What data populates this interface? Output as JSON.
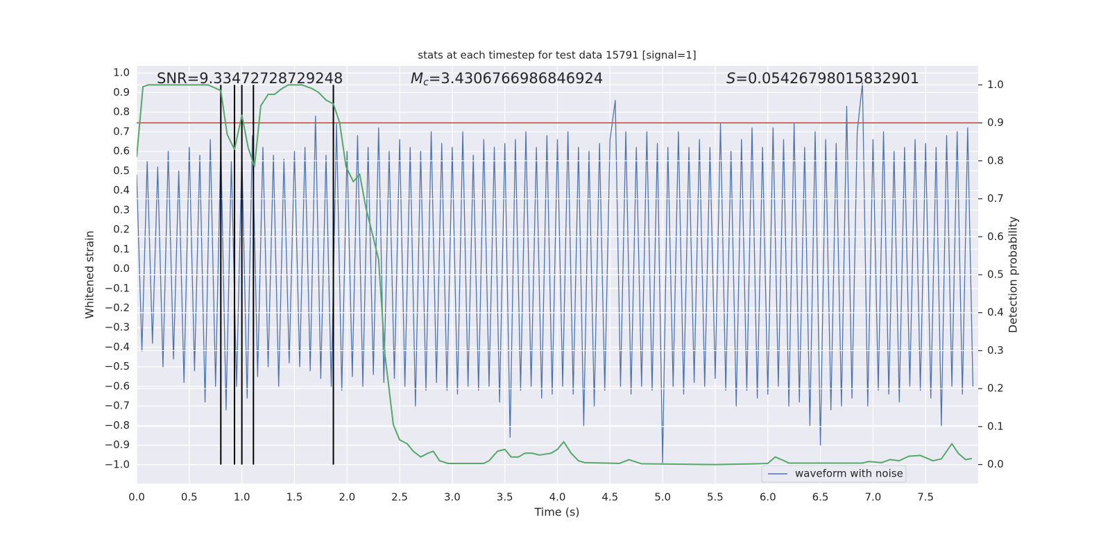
{
  "chart_data": {
    "type": "line",
    "title": "stats at each timestep for test data 15791 [signal=1]",
    "xlabel": "Time (s)",
    "ylabel": "Whitened strain",
    "y2label": "Detection probability",
    "background": "#eaeaf2",
    "grid": true,
    "legend": "lower right",
    "xlim": [
      0,
      8
    ],
    "ylim": [
      -1.096,
      1.036
    ],
    "y2lim": [
      -0.05,
      1.05
    ],
    "xticks": [
      {
        "value": 0,
        "label": "0.0"
      },
      0.5,
      {
        "value": 1,
        "label": "1.0"
      },
      1.5,
      {
        "value": 2,
        "label": "2.0"
      },
      2.5,
      {
        "value": 3,
        "label": "3.0"
      },
      3.5,
      {
        "value": 4,
        "label": "4.0"
      },
      4.5,
      {
        "value": 5,
        "label": "5.0"
      },
      5.5,
      {
        "value": 6,
        "label": "6.0"
      },
      6.5,
      {
        "value": 7,
        "label": "7.0"
      },
      7.5
    ],
    "yticks": [
      {
        "value": -1,
        "label": "−1.0"
      },
      {
        "value": -0.9,
        "label": "−0.9"
      },
      {
        "value": -0.8,
        "label": "−0.8"
      },
      {
        "value": -0.7,
        "label": "−0.7"
      },
      {
        "value": -0.6,
        "label": "−0.6"
      },
      {
        "value": -0.5,
        "label": "−0.5"
      },
      {
        "value": -0.4,
        "label": "−0.4"
      },
      {
        "value": -0.3,
        "label": "−0.3"
      },
      {
        "value": -0.2,
        "label": "−0.2"
      },
      {
        "value": -0.1,
        "label": "−0.1"
      },
      {
        "value": 0,
        "label": "0.0"
      },
      0.1,
      0.2,
      0.3,
      0.4,
      0.5,
      0.6,
      0.7,
      0.8,
      0.9,
      {
        "value": 1,
        "label": "1.0"
      }
    ],
    "y2ticks": [
      {
        "value": 0,
        "label": "0.0"
      },
      0.1,
      0.2,
      0.3,
      0.4,
      0.5,
      0.6,
      0.7,
      0.8,
      0.9,
      {
        "value": 1,
        "label": "1.0"
      }
    ],
    "annotations": [
      {
        "text": "SNR=9.33472728729248"
      },
      {
        "italic": "M",
        "sub": "c",
        "text": "=3.4306766986846924"
      },
      {
        "italic": "S",
        "text": "=0.05426798015832901"
      }
    ],
    "threshold": {
      "value": 0.9,
      "axis": "y2",
      "color": "#c44e52"
    },
    "vlines": [
      0.8,
      0.93,
      1.0,
      1.11,
      1.87
    ],
    "vline_color": "#000000",
    "series": [
      {
        "name": "waveform with noise",
        "color": "#4c72b0",
        "x": [
          0,
          0.05,
          0.1,
          0.15,
          0.2,
          0.25,
          0.3,
          0.35,
          0.4,
          0.45,
          0.5,
          0.55,
          0.6,
          0.65,
          0.7,
          0.75,
          0.8,
          0.85,
          0.9,
          0.95,
          1,
          1.05,
          1.1,
          1.15,
          1.2,
          1.25,
          1.3,
          1.35,
          1.4,
          1.45,
          1.5,
          1.55,
          1.6,
          1.65,
          1.7,
          1.75,
          1.8,
          1.85,
          1.9,
          1.95,
          2,
          2.05,
          2.1,
          2.15,
          2.2,
          2.25,
          2.3,
          2.35,
          2.4,
          2.45,
          2.5,
          2.55,
          2.6,
          2.65,
          2.7,
          2.75,
          2.8,
          2.85,
          2.9,
          2.95,
          3,
          3.05,
          3.1,
          3.15,
          3.2,
          3.25,
          3.3,
          3.35,
          3.4,
          3.45,
          3.5,
          3.55,
          3.6,
          3.65,
          3.7,
          3.75,
          3.8,
          3.85,
          3.9,
          3.95,
          4,
          4.05,
          4.1,
          4.15,
          4.2,
          4.25,
          4.3,
          4.35,
          4.4,
          4.45,
          4.5,
          4.55,
          4.6,
          4.65,
          4.7,
          4.75,
          4.8,
          4.85,
          4.9,
          4.95,
          5,
          5.05,
          5.1,
          5.15,
          5.2,
          5.25,
          5.3,
          5.35,
          5.4,
          5.45,
          5.5,
          5.55,
          5.6,
          5.65,
          5.7,
          5.75,
          5.8,
          5.85,
          5.9,
          5.95,
          6,
          6.05,
          6.1,
          6.15,
          6.2,
          6.25,
          6.3,
          6.35,
          6.4,
          6.45,
          6.5,
          6.55,
          6.6,
          6.65,
          6.7,
          6.75,
          6.8,
          6.85,
          6.9,
          6.95,
          7,
          7.05,
          7.1,
          7.15,
          7.2,
          7.25,
          7.3,
          7.35,
          7.4,
          7.45,
          7.5,
          7.55,
          7.6,
          7.65,
          7.7,
          7.75,
          7.8,
          7.85,
          7.9,
          7.95
        ],
        "values": [
          0.48,
          -0.42,
          0.55,
          -0.38,
          0.52,
          -0.5,
          0.6,
          -0.46,
          0.5,
          -0.58,
          0.62,
          -0.52,
          0.58,
          -0.68,
          0.66,
          -0.6,
          0.64,
          -0.72,
          0.55,
          -0.6,
          0.6,
          -0.66,
          0.68,
          -0.55,
          0.62,
          -0.5,
          0.58,
          -0.6,
          0.56,
          -0.48,
          0.6,
          -0.5,
          0.62,
          -0.52,
          0.78,
          -0.56,
          0.58,
          -0.6,
          0.74,
          -0.62,
          0.6,
          -0.55,
          0.68,
          -0.6,
          0.62,
          -0.54,
          0.72,
          -0.58,
          0.6,
          -0.56,
          0.66,
          -0.6,
          0.62,
          -0.7,
          0.6,
          -0.62,
          0.7,
          -0.58,
          0.64,
          -0.62,
          0.62,
          -0.64,
          0.7,
          -0.6,
          0.58,
          -0.62,
          0.66,
          -0.6,
          0.62,
          -0.68,
          0.64,
          -0.86,
          0.66,
          -0.62,
          0.7,
          -0.6,
          0.62,
          -0.66,
          0.68,
          -0.64,
          0.66,
          -0.6,
          0.7,
          -0.64,
          0.62,
          -0.8,
          0.6,
          -0.7,
          0.64,
          -0.62,
          0.66,
          0.86,
          -0.6,
          0.7,
          -0.64,
          0.62,
          -0.6,
          0.7,
          -0.62,
          0.64,
          -0.99,
          0.62,
          -0.6,
          0.7,
          -0.64,
          0.62,
          -0.58,
          0.66,
          -0.6,
          0.62,
          -0.56,
          0.74,
          -0.62,
          0.6,
          -0.7,
          0.66,
          -0.62,
          0.72,
          -0.66,
          0.62,
          -0.64,
          0.72,
          -0.6,
          0.66,
          -0.7,
          0.74,
          -0.68,
          0.62,
          -0.8,
          0.7,
          -0.9,
          0.66,
          -0.72,
          0.64,
          -0.7,
          0.83,
          -0.66,
          0.7,
          0.95,
          -0.7,
          0.66,
          -0.62,
          0.7,
          -0.64,
          0.6,
          -0.68,
          0.62,
          -0.6,
          0.66,
          -0.62,
          0.64,
          -0.66,
          0.62,
          -0.8,
          0.68,
          -0.6,
          0.7,
          -0.64,
          0.72,
          -0.6
        ]
      },
      {
        "color": "#55a868",
        "axis": "y2",
        "x": [
          0,
          0.06,
          0.11,
          0.4,
          0.68,
          0.8,
          0.86,
          0.93,
          1,
          1.06,
          1.12,
          1.18,
          1.25,
          1.31,
          1.38,
          1.44,
          1.57,
          1.67,
          1.73,
          1.8,
          1.87,
          1.93,
          1.99,
          2.06,
          2.12,
          2.18,
          2.23,
          2.3,
          2.36,
          2.44,
          2.5,
          2.57,
          2.63,
          2.7,
          2.77,
          2.82,
          2.88,
          2.96,
          3.1,
          3.3,
          3.35,
          3.43,
          3.5,
          3.56,
          3.63,
          3.69,
          3.76,
          3.83,
          3.94,
          4,
          4.06,
          4.13,
          4.2,
          4.26,
          4.59,
          4.68,
          4.8,
          5.5,
          5.9,
          6,
          6.07,
          6.13,
          6.2,
          6.9,
          6.96,
          7.08,
          7.16,
          7.25,
          7.34,
          7.45,
          7.57,
          7.65,
          7.75,
          7.81,
          7.88,
          7.94
        ],
        "values": [
          0.81,
          0.995,
          1,
          1,
          1,
          0.985,
          0.87,
          0.83,
          0.92,
          0.835,
          0.785,
          0.945,
          0.975,
          0.975,
          0.99,
          1,
          1,
          0.99,
          0.98,
          0.96,
          0.95,
          0.9,
          0.785,
          0.745,
          0.765,
          0.675,
          0.62,
          0.54,
          0.29,
          0.105,
          0.065,
          0.055,
          0.035,
          0.02,
          0.03,
          0.035,
          0.01,
          0.003,
          0.003,
          0.003,
          0.01,
          0.035,
          0.04,
          0.02,
          0.02,
          0.03,
          0.03,
          0.025,
          0.03,
          0.04,
          0.06,
          0.03,
          0.01,
          0.005,
          0.003,
          0.013,
          0.002,
          0,
          0.002,
          0.003,
          0.02,
          0.013,
          0.004,
          0.004,
          0.008,
          0.005,
          0.013,
          0.01,
          0.022,
          0.024,
          0.01,
          0.015,
          0.055,
          0.03,
          0.013,
          0.016
        ]
      }
    ]
  }
}
